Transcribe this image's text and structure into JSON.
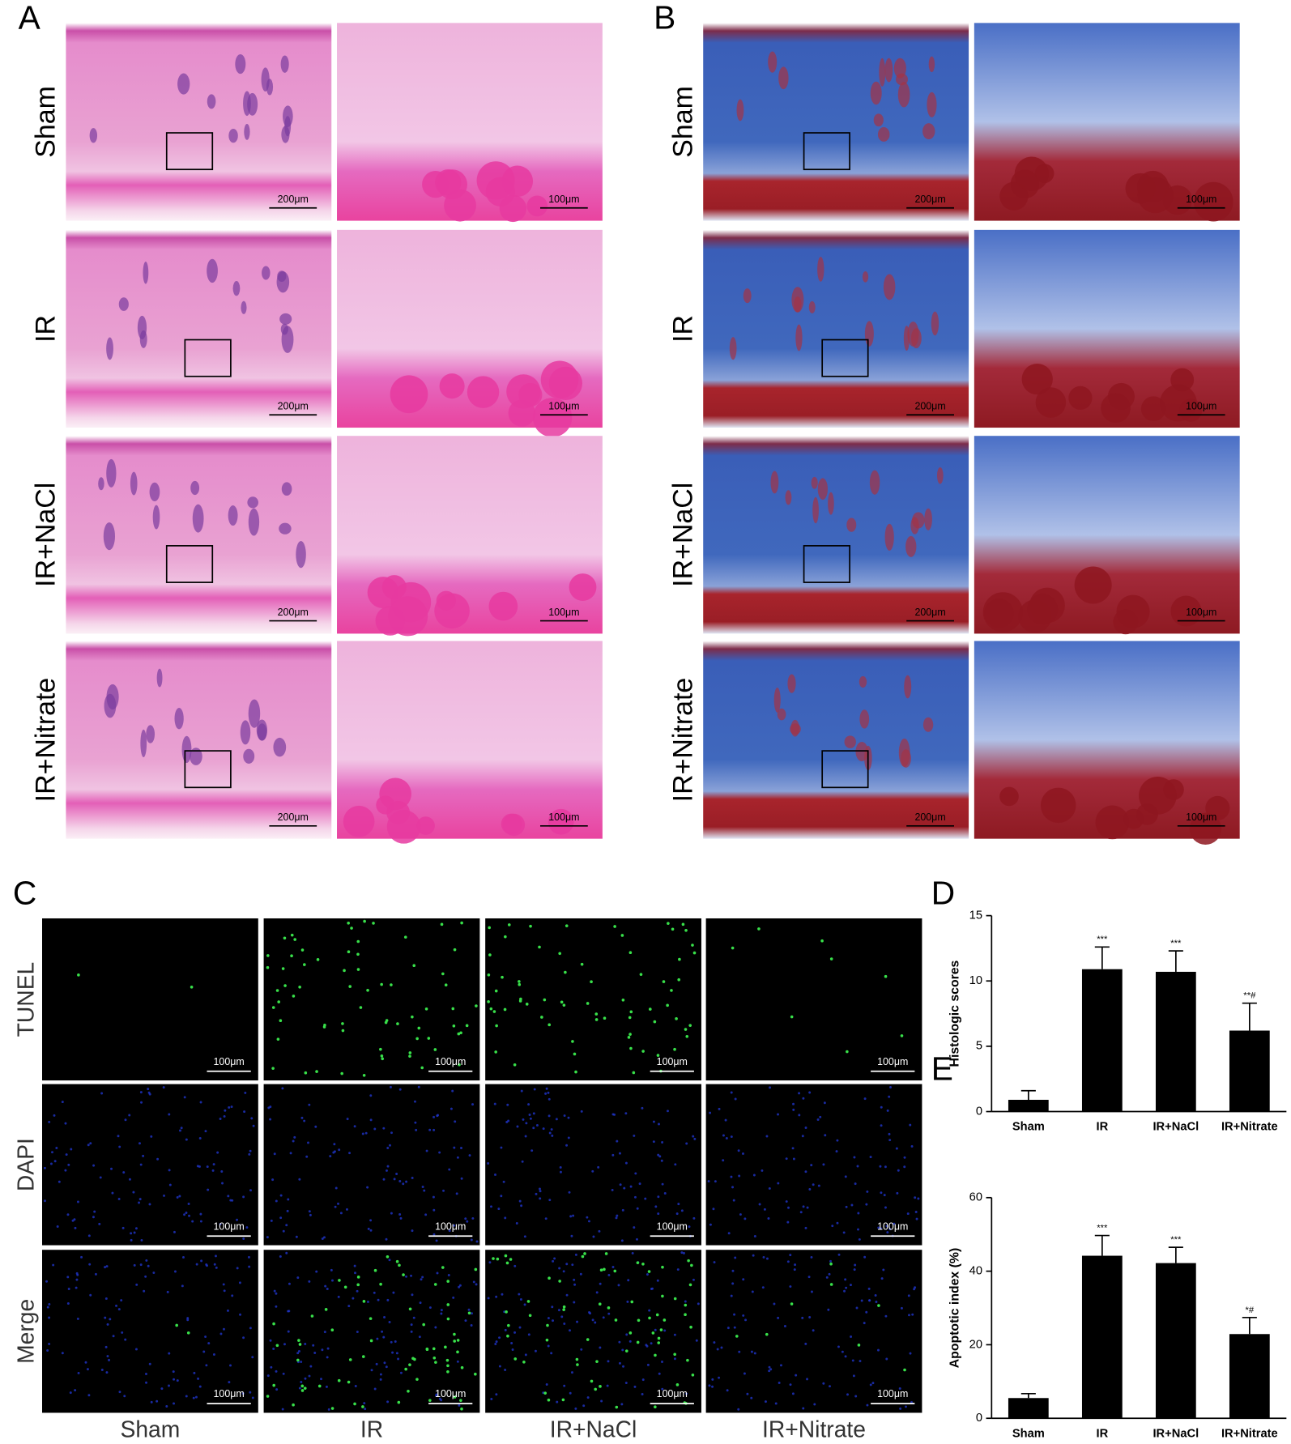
{
  "panels": {
    "a": "A",
    "b": "B",
    "c": "C",
    "d": "D",
    "e": "E"
  },
  "histology": {
    "rows": [
      "Sham",
      "IR",
      "IR+NaCl",
      "IR+Nitrate"
    ],
    "scale_low_mag": "200μm",
    "scale_high_mag": "100μm"
  },
  "fluorescence": {
    "rows": [
      "TUNEL",
      "DAPI",
      "Merge"
    ],
    "columns": [
      "Sham",
      "IR",
      "IR+NaCl",
      "IR+Nitrate"
    ],
    "scale": "100μm"
  },
  "chart_data": [
    {
      "type": "bar",
      "y_label": "Histologic scores",
      "categories": [
        "Sham",
        "IR",
        "IR+NaCl",
        "IR+Nitrate"
      ],
      "values": [
        0.9,
        10.9,
        10.7,
        6.2
      ],
      "errors": [
        0.7,
        1.7,
        1.6,
        2.1
      ],
      "significance": [
        null,
        "***",
        "***",
        "**#"
      ],
      "color": "#000000",
      "ylim": [
        0,
        15
      ],
      "yticks": [
        0,
        5,
        10,
        15
      ]
    },
    {
      "type": "bar",
      "y_label": "Apoptotic index (%)",
      "categories": [
        "Sham",
        "IR",
        "IR+NaCl",
        "IR+Nitrate"
      ],
      "values": [
        5.5,
        44.2,
        42.2,
        22.9
      ],
      "errors": [
        1.2,
        5.5,
        4.3,
        4.5
      ],
      "significance": [
        null,
        "***",
        "***",
        "*#"
      ],
      "color": "#000000",
      "ylim": [
        0,
        60
      ],
      "yticks": [
        0,
        20,
        40,
        60
      ]
    }
  ]
}
